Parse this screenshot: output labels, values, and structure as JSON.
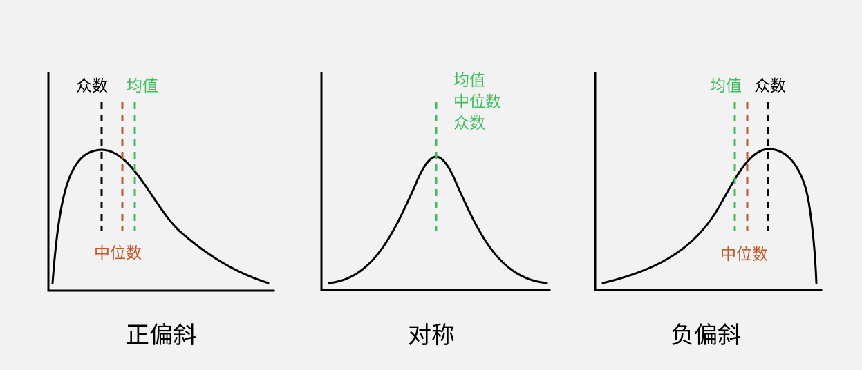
{
  "colors": {
    "background": "#f2f2f2",
    "curve": "#000000",
    "mode": "#000000",
    "median": "#c05a28",
    "mean": "#3cbf5a"
  },
  "panels": [
    {
      "caption": "正偏斜",
      "labels": {
        "mode": "众数",
        "mean": "均值",
        "median": "中位数"
      }
    },
    {
      "caption": "对称",
      "labels": {
        "mean": "均值",
        "median": "中位数",
        "mode": "众数"
      }
    },
    {
      "caption": "负偏斜",
      "labels": {
        "mean": "均值",
        "mode": "众数",
        "median": "中位数"
      }
    }
  ]
}
